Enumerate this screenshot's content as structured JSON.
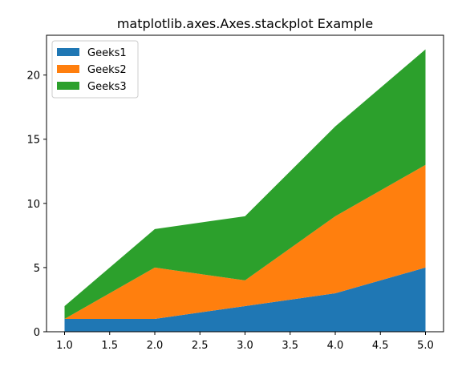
{
  "chart_data": {
    "type": "area",
    "stacked": true,
    "title": "matplotlib.axes.Axes.stackplot Example",
    "xlabel": "",
    "ylabel": "",
    "x": [
      1,
      2,
      3,
      4,
      5
    ],
    "xlim": [
      0.8,
      5.2
    ],
    "ylim": [
      0,
      23.1
    ],
    "xticks": [
      1.0,
      1.5,
      2.0,
      2.5,
      3.0,
      3.5,
      4.0,
      4.5,
      5.0
    ],
    "xtick_labels": [
      "1.0",
      "1.5",
      "2.0",
      "2.5",
      "3.0",
      "3.5",
      "4.0",
      "4.5",
      "5.0"
    ],
    "yticks": [
      0,
      5,
      10,
      15,
      20
    ],
    "ytick_labels": [
      "0",
      "5",
      "10",
      "15",
      "20"
    ],
    "grid": false,
    "legend_position": "top-left",
    "series": [
      {
        "name": "Geeks1",
        "values": [
          1,
          1,
          2,
          3,
          5
        ],
        "color": "#1f77b4"
      },
      {
        "name": "Geeks2",
        "values": [
          0,
          4,
          2,
          6,
          8
        ],
        "color": "#ff7f0e"
      },
      {
        "name": "Geeks3",
        "values": [
          1,
          3,
          5,
          7,
          9
        ],
        "color": "#2ca02c"
      }
    ]
  }
}
